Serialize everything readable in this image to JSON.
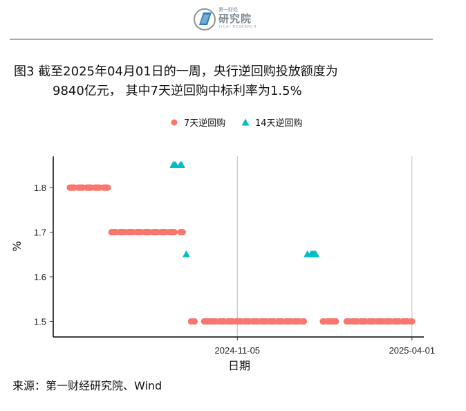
{
  "header": {
    "logo_small": "第一财经",
    "logo_main": "研究院",
    "logo_sub": "YICAI RESEARCH"
  },
  "title_line1": "图3  截至2025年04月01日的一周，央行逆回购投放额度为",
  "title_line2": "9840亿元， 其中7天逆回购中标利率为1.5%",
  "source": "来源：第一财经研究院、Wind",
  "colors": {
    "series7": "#F8766D",
    "series14": "#00BFC4"
  },
  "chart_data": {
    "type": "scatter",
    "xlabel": "日期",
    "ylabel": "%",
    "xlim": [
      "2024-06-03",
      "2025-04-11"
    ],
    "ylim": [
      1.465,
      1.87
    ],
    "yticks": [
      1.5,
      1.6,
      1.7,
      1.8
    ],
    "xticks": [
      "2024-11-05",
      "2025-04-01"
    ],
    "grid": "major vertical lines at x ticks",
    "legend": "top-center",
    "series": [
      {
        "name": "7天逆回购",
        "marker": "circle",
        "points": [
          {
            "x": "2024-06-17",
            "y": 1.8
          },
          {
            "x": "2024-06-18",
            "y": 1.8
          },
          {
            "x": "2024-06-19",
            "y": 1.8
          },
          {
            "x": "2024-06-20",
            "y": 1.8
          },
          {
            "x": "2024-06-21",
            "y": 1.8
          },
          {
            "x": "2024-06-24",
            "y": 1.8
          },
          {
            "x": "2024-06-25",
            "y": 1.8
          },
          {
            "x": "2024-06-26",
            "y": 1.8
          },
          {
            "x": "2024-06-27",
            "y": 1.8
          },
          {
            "x": "2024-06-28",
            "y": 1.8
          },
          {
            "x": "2024-07-01",
            "y": 1.8
          },
          {
            "x": "2024-07-02",
            "y": 1.8
          },
          {
            "x": "2024-07-03",
            "y": 1.8
          },
          {
            "x": "2024-07-04",
            "y": 1.8
          },
          {
            "x": "2024-07-05",
            "y": 1.8
          },
          {
            "x": "2024-07-08",
            "y": 1.8
          },
          {
            "x": "2024-07-09",
            "y": 1.8
          },
          {
            "x": "2024-07-10",
            "y": 1.8
          },
          {
            "x": "2024-07-11",
            "y": 1.8
          },
          {
            "x": "2024-07-12",
            "y": 1.8
          },
          {
            "x": "2024-07-15",
            "y": 1.8
          },
          {
            "x": "2024-07-16",
            "y": 1.8
          },
          {
            "x": "2024-07-17",
            "y": 1.8
          },
          {
            "x": "2024-07-18",
            "y": 1.8
          },
          {
            "x": "2024-07-19",
            "y": 1.8
          },
          {
            "x": "2024-07-22",
            "y": 1.7
          },
          {
            "x": "2024-07-23",
            "y": 1.7
          },
          {
            "x": "2024-07-24",
            "y": 1.7
          },
          {
            "x": "2024-07-25",
            "y": 1.7
          },
          {
            "x": "2024-07-26",
            "y": 1.7
          },
          {
            "x": "2024-07-29",
            "y": 1.7
          },
          {
            "x": "2024-07-30",
            "y": 1.7
          },
          {
            "x": "2024-07-31",
            "y": 1.7
          },
          {
            "x": "2024-08-01",
            "y": 1.7
          },
          {
            "x": "2024-08-02",
            "y": 1.7
          },
          {
            "x": "2024-08-05",
            "y": 1.7
          },
          {
            "x": "2024-08-06",
            "y": 1.7
          },
          {
            "x": "2024-08-07",
            "y": 1.7
          },
          {
            "x": "2024-08-08",
            "y": 1.7
          },
          {
            "x": "2024-08-09",
            "y": 1.7
          },
          {
            "x": "2024-08-12",
            "y": 1.7
          },
          {
            "x": "2024-08-13",
            "y": 1.7
          },
          {
            "x": "2024-08-14",
            "y": 1.7
          },
          {
            "x": "2024-08-15",
            "y": 1.7
          },
          {
            "x": "2024-08-16",
            "y": 1.7
          },
          {
            "x": "2024-08-19",
            "y": 1.7
          },
          {
            "x": "2024-08-20",
            "y": 1.7
          },
          {
            "x": "2024-08-21",
            "y": 1.7
          },
          {
            "x": "2024-08-22",
            "y": 1.7
          },
          {
            "x": "2024-08-23",
            "y": 1.7
          },
          {
            "x": "2024-08-26",
            "y": 1.7
          },
          {
            "x": "2024-08-27",
            "y": 1.7
          },
          {
            "x": "2024-08-28",
            "y": 1.7
          },
          {
            "x": "2024-08-29",
            "y": 1.7
          },
          {
            "x": "2024-08-30",
            "y": 1.7
          },
          {
            "x": "2024-09-02",
            "y": 1.7
          },
          {
            "x": "2024-09-03",
            "y": 1.7
          },
          {
            "x": "2024-09-04",
            "y": 1.7
          },
          {
            "x": "2024-09-05",
            "y": 1.7
          },
          {
            "x": "2024-09-06",
            "y": 1.7
          },
          {
            "x": "2024-09-09",
            "y": 1.7
          },
          {
            "x": "2024-09-10",
            "y": 1.7
          },
          {
            "x": "2024-09-11",
            "y": 1.7
          },
          {
            "x": "2024-09-12",
            "y": 1.7
          },
          {
            "x": "2024-09-13",
            "y": 1.7
          },
          {
            "x": "2024-09-18",
            "y": 1.7
          },
          {
            "x": "2024-09-19",
            "y": 1.7
          },
          {
            "x": "2024-09-20",
            "y": 1.7
          },
          {
            "x": "2024-09-27",
            "y": 1.5
          },
          {
            "x": "2024-09-29",
            "y": 1.5
          },
          {
            "x": "2024-09-30",
            "y": 1.5
          },
          {
            "x": "2024-10-08",
            "y": 1.5
          },
          {
            "x": "2024-10-09",
            "y": 1.5
          },
          {
            "x": "2024-10-10",
            "y": 1.5
          },
          {
            "x": "2024-10-11",
            "y": 1.5
          },
          {
            "x": "2024-10-12",
            "y": 1.5
          },
          {
            "x": "2024-10-14",
            "y": 1.5
          },
          {
            "x": "2024-10-15",
            "y": 1.5
          },
          {
            "x": "2024-10-16",
            "y": 1.5
          },
          {
            "x": "2024-10-17",
            "y": 1.5
          },
          {
            "x": "2024-10-18",
            "y": 1.5
          },
          {
            "x": "2024-10-21",
            "y": 1.5
          },
          {
            "x": "2024-10-22",
            "y": 1.5
          },
          {
            "x": "2024-10-23",
            "y": 1.5
          },
          {
            "x": "2024-10-24",
            "y": 1.5
          },
          {
            "x": "2024-10-25",
            "y": 1.5
          },
          {
            "x": "2024-10-28",
            "y": 1.5
          },
          {
            "x": "2024-10-29",
            "y": 1.5
          },
          {
            "x": "2024-10-30",
            "y": 1.5
          },
          {
            "x": "2024-10-31",
            "y": 1.5
          },
          {
            "x": "2024-11-01",
            "y": 1.5
          },
          {
            "x": "2024-11-04",
            "y": 1.5
          },
          {
            "x": "2024-11-05",
            "y": 1.5
          },
          {
            "x": "2024-11-06",
            "y": 1.5
          },
          {
            "x": "2024-11-07",
            "y": 1.5
          },
          {
            "x": "2024-11-08",
            "y": 1.5
          },
          {
            "x": "2024-11-11",
            "y": 1.5
          },
          {
            "x": "2024-11-12",
            "y": 1.5
          },
          {
            "x": "2024-11-13",
            "y": 1.5
          },
          {
            "x": "2024-11-14",
            "y": 1.5
          },
          {
            "x": "2024-11-15",
            "y": 1.5
          },
          {
            "x": "2024-11-18",
            "y": 1.5
          },
          {
            "x": "2024-11-19",
            "y": 1.5
          },
          {
            "x": "2024-11-20",
            "y": 1.5
          },
          {
            "x": "2024-11-21",
            "y": 1.5
          },
          {
            "x": "2024-11-22",
            "y": 1.5
          },
          {
            "x": "2024-11-25",
            "y": 1.5
          },
          {
            "x": "2024-11-26",
            "y": 1.5
          },
          {
            "x": "2024-11-27",
            "y": 1.5
          },
          {
            "x": "2024-11-28",
            "y": 1.5
          },
          {
            "x": "2024-11-29",
            "y": 1.5
          },
          {
            "x": "2024-12-02",
            "y": 1.5
          },
          {
            "x": "2024-12-03",
            "y": 1.5
          },
          {
            "x": "2024-12-04",
            "y": 1.5
          },
          {
            "x": "2024-12-05",
            "y": 1.5
          },
          {
            "x": "2024-12-06",
            "y": 1.5
          },
          {
            "x": "2024-12-09",
            "y": 1.5
          },
          {
            "x": "2024-12-10",
            "y": 1.5
          },
          {
            "x": "2024-12-11",
            "y": 1.5
          },
          {
            "x": "2024-12-12",
            "y": 1.5
          },
          {
            "x": "2024-12-13",
            "y": 1.5
          },
          {
            "x": "2024-12-16",
            "y": 1.5
          },
          {
            "x": "2024-12-17",
            "y": 1.5
          },
          {
            "x": "2024-12-18",
            "y": 1.5
          },
          {
            "x": "2024-12-19",
            "y": 1.5
          },
          {
            "x": "2024-12-20",
            "y": 1.5
          },
          {
            "x": "2024-12-23",
            "y": 1.5
          },
          {
            "x": "2024-12-24",
            "y": 1.5
          },
          {
            "x": "2024-12-25",
            "y": 1.5
          },
          {
            "x": "2024-12-26",
            "y": 1.5
          },
          {
            "x": "2024-12-27",
            "y": 1.5
          },
          {
            "x": "2024-12-30",
            "y": 1.5
          },
          {
            "x": "2024-12-31",
            "y": 1.5
          },
          {
            "x": "2025-01-16",
            "y": 1.5
          },
          {
            "x": "2025-01-17",
            "y": 1.5
          },
          {
            "x": "2025-01-20",
            "y": 1.5
          },
          {
            "x": "2025-01-21",
            "y": 1.5
          },
          {
            "x": "2025-01-22",
            "y": 1.5
          },
          {
            "x": "2025-01-23",
            "y": 1.5
          },
          {
            "x": "2025-01-24",
            "y": 1.5
          },
          {
            "x": "2025-01-26",
            "y": 1.5
          },
          {
            "x": "2025-01-27",
            "y": 1.5
          },
          {
            "x": "2025-02-05",
            "y": 1.5
          },
          {
            "x": "2025-02-06",
            "y": 1.5
          },
          {
            "x": "2025-02-07",
            "y": 1.5
          },
          {
            "x": "2025-02-10",
            "y": 1.5
          },
          {
            "x": "2025-02-11",
            "y": 1.5
          },
          {
            "x": "2025-02-12",
            "y": 1.5
          },
          {
            "x": "2025-02-13",
            "y": 1.5
          },
          {
            "x": "2025-02-14",
            "y": 1.5
          },
          {
            "x": "2025-02-17",
            "y": 1.5
          },
          {
            "x": "2025-02-18",
            "y": 1.5
          },
          {
            "x": "2025-02-19",
            "y": 1.5
          },
          {
            "x": "2025-02-20",
            "y": 1.5
          },
          {
            "x": "2025-02-21",
            "y": 1.5
          },
          {
            "x": "2025-02-24",
            "y": 1.5
          },
          {
            "x": "2025-02-25",
            "y": 1.5
          },
          {
            "x": "2025-02-26",
            "y": 1.5
          },
          {
            "x": "2025-02-27",
            "y": 1.5
          },
          {
            "x": "2025-02-28",
            "y": 1.5
          },
          {
            "x": "2025-03-03",
            "y": 1.5
          },
          {
            "x": "2025-03-04",
            "y": 1.5
          },
          {
            "x": "2025-03-05",
            "y": 1.5
          },
          {
            "x": "2025-03-06",
            "y": 1.5
          },
          {
            "x": "2025-03-07",
            "y": 1.5
          },
          {
            "x": "2025-03-10",
            "y": 1.5
          },
          {
            "x": "2025-03-11",
            "y": 1.5
          },
          {
            "x": "2025-03-12",
            "y": 1.5
          },
          {
            "x": "2025-03-13",
            "y": 1.5
          },
          {
            "x": "2025-03-14",
            "y": 1.5
          },
          {
            "x": "2025-03-17",
            "y": 1.5
          },
          {
            "x": "2025-03-18",
            "y": 1.5
          },
          {
            "x": "2025-03-19",
            "y": 1.5
          },
          {
            "x": "2025-03-20",
            "y": 1.5
          },
          {
            "x": "2025-03-21",
            "y": 1.5
          },
          {
            "x": "2025-03-24",
            "y": 1.5
          },
          {
            "x": "2025-03-25",
            "y": 1.5
          },
          {
            "x": "2025-03-26",
            "y": 1.5
          },
          {
            "x": "2025-03-27",
            "y": 1.5
          },
          {
            "x": "2025-03-28",
            "y": 1.5
          },
          {
            "x": "2025-03-31",
            "y": 1.5
          },
          {
            "x": "2025-04-01",
            "y": 1.5
          }
        ]
      },
      {
        "name": "14天逆回购",
        "marker": "triangle",
        "points": [
          {
            "x": "2024-09-12",
            "y": 1.85
          },
          {
            "x": "2024-09-13",
            "y": 1.85
          },
          {
            "x": "2024-09-14",
            "y": 1.85
          },
          {
            "x": "2024-09-18",
            "y": 1.85
          },
          {
            "x": "2024-09-19",
            "y": 1.85
          },
          {
            "x": "2024-09-23",
            "y": 1.65
          },
          {
            "x": "2025-01-03",
            "y": 1.65
          },
          {
            "x": "2025-01-06",
            "y": 1.65
          },
          {
            "x": "2025-01-07",
            "y": 1.65
          },
          {
            "x": "2025-01-08",
            "y": 1.65
          },
          {
            "x": "2025-01-09",
            "y": 1.65
          },
          {
            "x": "2025-01-10",
            "y": 1.65
          }
        ]
      }
    ]
  }
}
